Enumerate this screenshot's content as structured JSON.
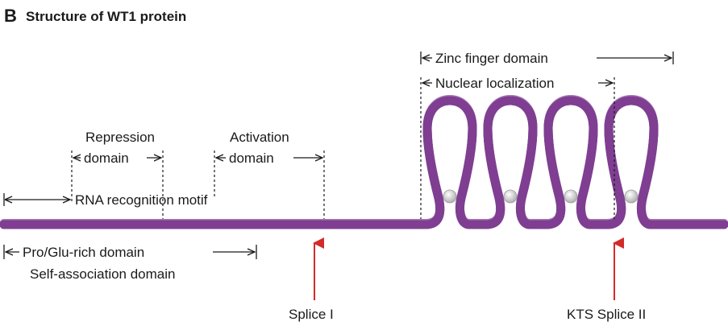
{
  "figure": {
    "panel_letter": "B",
    "title": "Structure of WT1 protein"
  },
  "domains": {
    "zinc_finger": "Zinc finger domain",
    "nuclear_localization": "Nuclear localization",
    "repression_line1": "Repression",
    "repression_line2": "domain",
    "activation_line1": "Activation",
    "activation_line2": "domain",
    "rna_recognition": "RNA recognition motif",
    "pro_glu": "Pro/Glu-rich domain",
    "self_association": "Self-association domain"
  },
  "splice_sites": {
    "splice_1": "Splice I",
    "splice_2": "KTS Splice II"
  },
  "colors": {
    "protein": "#b06fc3",
    "protein_highlight": "#d9b3e3",
    "protein_outline": "#7f3f92",
    "arrow": "#d42a2a",
    "zinc_ion": "#c9c9c9"
  }
}
